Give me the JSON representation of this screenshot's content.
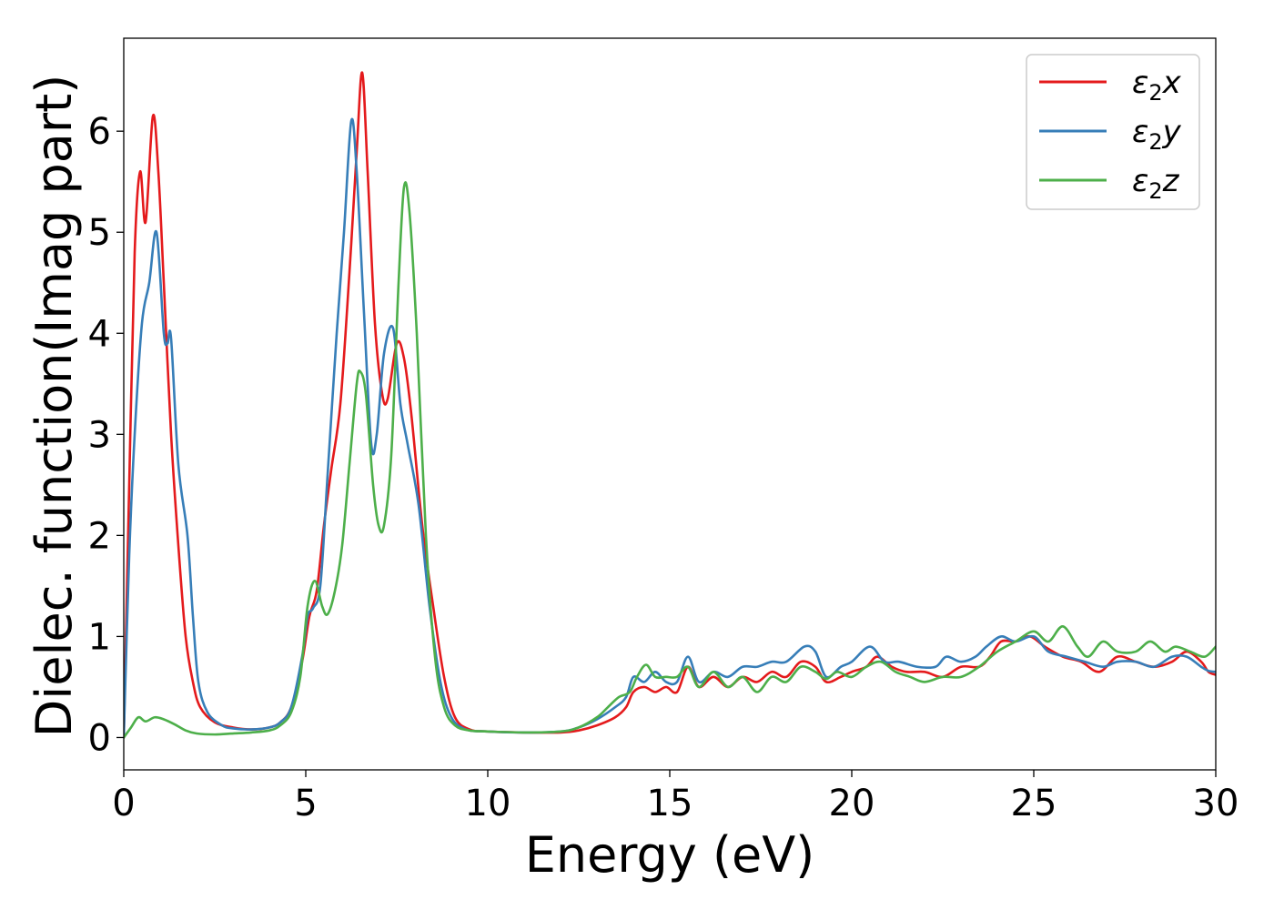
{
  "chart_data": {
    "type": "line",
    "title": "",
    "xlabel": "Energy (eV)",
    "ylabel": "Dielec. function(Imag part)",
    "xlim": [
      0,
      30
    ],
    "ylim": [
      -0.32,
      6.92
    ],
    "xticks": [
      0,
      5,
      10,
      15,
      20,
      25,
      30
    ],
    "xtick_labels": [
      "0",
      "5",
      "10",
      "15",
      "20",
      "25",
      "30"
    ],
    "yticks": [
      0,
      1,
      2,
      3,
      4,
      5,
      6
    ],
    "ytick_labels": [
      "0",
      "1",
      "2",
      "3",
      "4",
      "5",
      "6"
    ],
    "grid": false,
    "legend": {
      "placement": "top-right"
    },
    "series": [
      {
        "name": "ε₂x",
        "legend_main": "ε",
        "legend_sub": "2",
        "legend_tail": "x",
        "color": "#e41a1c",
        "points": [
          [
            0,
            0
          ],
          [
            0.15,
            2.5
          ],
          [
            0.3,
            4.8
          ],
          [
            0.45,
            5.6
          ],
          [
            0.6,
            5.1
          ],
          [
            0.8,
            6.15
          ],
          [
            0.95,
            5.6
          ],
          [
            1.1,
            4.5
          ],
          [
            1.3,
            3.0
          ],
          [
            1.5,
            1.9
          ],
          [
            1.7,
            1.0
          ],
          [
            1.9,
            0.55
          ],
          [
            2.1,
            0.3
          ],
          [
            2.5,
            0.15
          ],
          [
            3.0,
            0.1
          ],
          [
            3.5,
            0.08
          ],
          [
            4.0,
            0.1
          ],
          [
            4.3,
            0.15
          ],
          [
            4.6,
            0.3
          ],
          [
            4.9,
            0.75
          ],
          [
            5.1,
            1.2
          ],
          [
            5.3,
            1.45
          ],
          [
            5.5,
            2.1
          ],
          [
            5.7,
            2.65
          ],
          [
            5.95,
            3.3
          ],
          [
            6.2,
            4.6
          ],
          [
            6.4,
            5.8
          ],
          [
            6.55,
            6.58
          ],
          [
            6.7,
            5.6
          ],
          [
            6.9,
            4.1
          ],
          [
            7.1,
            3.4
          ],
          [
            7.25,
            3.35
          ],
          [
            7.5,
            3.9
          ],
          [
            7.7,
            3.75
          ],
          [
            7.9,
            3.2
          ],
          [
            8.2,
            2.1
          ],
          [
            8.5,
            1.3
          ],
          [
            8.8,
            0.6
          ],
          [
            9.1,
            0.2
          ],
          [
            9.5,
            0.08
          ],
          [
            10,
            0.06
          ],
          [
            11,
            0.05
          ],
          [
            12,
            0.05
          ],
          [
            12.5,
            0.07
          ],
          [
            13,
            0.12
          ],
          [
            13.5,
            0.2
          ],
          [
            13.8,
            0.3
          ],
          [
            14.0,
            0.45
          ],
          [
            14.3,
            0.5
          ],
          [
            14.6,
            0.45
          ],
          [
            14.9,
            0.5
          ],
          [
            15.2,
            0.45
          ],
          [
            15.5,
            0.7
          ],
          [
            15.8,
            0.5
          ],
          [
            16.2,
            0.6
          ],
          [
            16.6,
            0.5
          ],
          [
            17.0,
            0.6
          ],
          [
            17.4,
            0.55
          ],
          [
            17.8,
            0.65
          ],
          [
            18.2,
            0.6
          ],
          [
            18.6,
            0.75
          ],
          [
            19.0,
            0.7
          ],
          [
            19.3,
            0.55
          ],
          [
            19.7,
            0.6
          ],
          [
            20.0,
            0.65
          ],
          [
            20.4,
            0.7
          ],
          [
            20.7,
            0.8
          ],
          [
            21.1,
            0.7
          ],
          [
            21.5,
            0.65
          ],
          [
            22.0,
            0.65
          ],
          [
            22.5,
            0.6
          ],
          [
            23.0,
            0.7
          ],
          [
            23.5,
            0.7
          ],
          [
            23.8,
            0.8
          ],
          [
            24.1,
            0.95
          ],
          [
            24.5,
            0.95
          ],
          [
            24.9,
            1.0
          ],
          [
            25.3,
            0.9
          ],
          [
            25.8,
            0.8
          ],
          [
            26.3,
            0.75
          ],
          [
            26.8,
            0.65
          ],
          [
            27.3,
            0.8
          ],
          [
            27.8,
            0.75
          ],
          [
            28.3,
            0.7
          ],
          [
            28.8,
            0.75
          ],
          [
            29.2,
            0.85
          ],
          [
            29.6,
            0.75
          ],
          [
            29.8,
            0.65
          ],
          [
            30,
            0.62
          ]
        ]
      },
      {
        "name": "ε₂y",
        "legend_main": "ε",
        "legend_sub": "2",
        "legend_tail": "y",
        "color": "#377eb8",
        "points": [
          [
            0,
            0
          ],
          [
            0.15,
            1.8
          ],
          [
            0.3,
            3.0
          ],
          [
            0.5,
            4.1
          ],
          [
            0.7,
            4.5
          ],
          [
            0.9,
            5.0
          ],
          [
            1.1,
            4.0
          ],
          [
            1.2,
            3.9
          ],
          [
            1.3,
            3.95
          ],
          [
            1.5,
            2.7
          ],
          [
            1.75,
            2.0
          ],
          [
            1.9,
            1.2
          ],
          [
            2.05,
            0.55
          ],
          [
            2.3,
            0.25
          ],
          [
            2.7,
            0.12
          ],
          [
            3.0,
            0.09
          ],
          [
            3.5,
            0.08
          ],
          [
            4.0,
            0.1
          ],
          [
            4.3,
            0.15
          ],
          [
            4.6,
            0.3
          ],
          [
            4.9,
            0.8
          ],
          [
            5.05,
            1.2
          ],
          [
            5.2,
            1.28
          ],
          [
            5.4,
            1.5
          ],
          [
            5.6,
            2.6
          ],
          [
            5.85,
            4.0
          ],
          [
            6.05,
            5.0
          ],
          [
            6.25,
            6.1
          ],
          [
            6.4,
            5.6
          ],
          [
            6.6,
            4.2
          ],
          [
            6.8,
            2.9
          ],
          [
            6.95,
            3.0
          ],
          [
            7.15,
            3.8
          ],
          [
            7.4,
            4.05
          ],
          [
            7.6,
            3.3
          ],
          [
            7.8,
            2.9
          ],
          [
            8.1,
            2.3
          ],
          [
            8.4,
            1.3
          ],
          [
            8.7,
            0.55
          ],
          [
            9.0,
            0.2
          ],
          [
            9.4,
            0.08
          ],
          [
            10,
            0.06
          ],
          [
            11,
            0.05
          ],
          [
            12,
            0.06
          ],
          [
            12.5,
            0.1
          ],
          [
            13,
            0.18
          ],
          [
            13.5,
            0.3
          ],
          [
            13.8,
            0.4
          ],
          [
            14.0,
            0.6
          ],
          [
            14.3,
            0.55
          ],
          [
            14.6,
            0.65
          ],
          [
            14.9,
            0.55
          ],
          [
            15.2,
            0.55
          ],
          [
            15.5,
            0.8
          ],
          [
            15.8,
            0.55
          ],
          [
            16.2,
            0.65
          ],
          [
            16.6,
            0.6
          ],
          [
            17.0,
            0.7
          ],
          [
            17.4,
            0.7
          ],
          [
            17.8,
            0.75
          ],
          [
            18.2,
            0.75
          ],
          [
            18.7,
            0.9
          ],
          [
            19.0,
            0.85
          ],
          [
            19.3,
            0.6
          ],
          [
            19.7,
            0.7
          ],
          [
            20.0,
            0.75
          ],
          [
            20.5,
            0.9
          ],
          [
            20.9,
            0.75
          ],
          [
            21.3,
            0.75
          ],
          [
            21.8,
            0.7
          ],
          [
            22.3,
            0.7
          ],
          [
            22.6,
            0.8
          ],
          [
            23.0,
            0.75
          ],
          [
            23.4,
            0.8
          ],
          [
            23.7,
            0.9
          ],
          [
            24.1,
            1.0
          ],
          [
            24.5,
            0.95
          ],
          [
            25.0,
            1.0
          ],
          [
            25.4,
            0.85
          ],
          [
            25.9,
            0.8
          ],
          [
            26.4,
            0.75
          ],
          [
            26.9,
            0.7
          ],
          [
            27.3,
            0.75
          ],
          [
            27.8,
            0.75
          ],
          [
            28.3,
            0.7
          ],
          [
            28.8,
            0.8
          ],
          [
            29.2,
            0.8
          ],
          [
            29.6,
            0.7
          ],
          [
            29.8,
            0.66
          ],
          [
            30,
            0.65
          ]
        ]
      },
      {
        "name": "ε₂z",
        "legend_main": "ε",
        "legend_sub": "2",
        "legend_tail": "z",
        "color": "#4daf4a",
        "points": [
          [
            0,
            0
          ],
          [
            0.2,
            0.1
          ],
          [
            0.4,
            0.2
          ],
          [
            0.6,
            0.16
          ],
          [
            0.85,
            0.2
          ],
          [
            1.1,
            0.18
          ],
          [
            1.4,
            0.13
          ],
          [
            1.7,
            0.07
          ],
          [
            2.0,
            0.04
          ],
          [
            2.5,
            0.03
          ],
          [
            3.0,
            0.04
          ],
          [
            3.5,
            0.05
          ],
          [
            4.0,
            0.07
          ],
          [
            4.3,
            0.12
          ],
          [
            4.6,
            0.25
          ],
          [
            4.85,
            0.6
          ],
          [
            5.05,
            1.3
          ],
          [
            5.25,
            1.55
          ],
          [
            5.45,
            1.3
          ],
          [
            5.6,
            1.22
          ],
          [
            5.8,
            1.45
          ],
          [
            6.0,
            1.9
          ],
          [
            6.2,
            2.7
          ],
          [
            6.4,
            3.5
          ],
          [
            6.5,
            3.62
          ],
          [
            6.65,
            3.4
          ],
          [
            6.85,
            2.5
          ],
          [
            7.0,
            2.1
          ],
          [
            7.15,
            2.1
          ],
          [
            7.35,
            2.8
          ],
          [
            7.55,
            4.5
          ],
          [
            7.7,
            5.45
          ],
          [
            7.85,
            5.2
          ],
          [
            8.05,
            4.0
          ],
          [
            8.3,
            2.0
          ],
          [
            8.55,
            0.8
          ],
          [
            8.8,
            0.3
          ],
          [
            9.1,
            0.12
          ],
          [
            9.5,
            0.07
          ],
          [
            10,
            0.06
          ],
          [
            11,
            0.05
          ],
          [
            12,
            0.06
          ],
          [
            12.5,
            0.1
          ],
          [
            13,
            0.2
          ],
          [
            13.3,
            0.3
          ],
          [
            13.6,
            0.4
          ],
          [
            13.9,
            0.45
          ],
          [
            14.1,
            0.6
          ],
          [
            14.35,
            0.72
          ],
          [
            14.6,
            0.6
          ],
          [
            14.9,
            0.6
          ],
          [
            15.2,
            0.6
          ],
          [
            15.5,
            0.7
          ],
          [
            15.8,
            0.5
          ],
          [
            16.2,
            0.65
          ],
          [
            16.6,
            0.5
          ],
          [
            17.0,
            0.6
          ],
          [
            17.4,
            0.45
          ],
          [
            17.8,
            0.6
          ],
          [
            18.2,
            0.55
          ],
          [
            18.6,
            0.7
          ],
          [
            19.0,
            0.65
          ],
          [
            19.3,
            0.58
          ],
          [
            19.6,
            0.65
          ],
          [
            20.0,
            0.6
          ],
          [
            20.4,
            0.7
          ],
          [
            20.8,
            0.75
          ],
          [
            21.2,
            0.65
          ],
          [
            21.6,
            0.6
          ],
          [
            22.0,
            0.55
          ],
          [
            22.5,
            0.6
          ],
          [
            23.0,
            0.6
          ],
          [
            23.5,
            0.7
          ],
          [
            24.0,
            0.85
          ],
          [
            24.5,
            0.95
          ],
          [
            25.0,
            1.05
          ],
          [
            25.4,
            0.95
          ],
          [
            25.8,
            1.1
          ],
          [
            26.2,
            0.9
          ],
          [
            26.5,
            0.8
          ],
          [
            26.9,
            0.95
          ],
          [
            27.3,
            0.85
          ],
          [
            27.8,
            0.85
          ],
          [
            28.2,
            0.95
          ],
          [
            28.6,
            0.85
          ],
          [
            28.9,
            0.9
          ],
          [
            29.3,
            0.85
          ],
          [
            29.7,
            0.8
          ],
          [
            30,
            0.9
          ]
        ]
      }
    ]
  }
}
